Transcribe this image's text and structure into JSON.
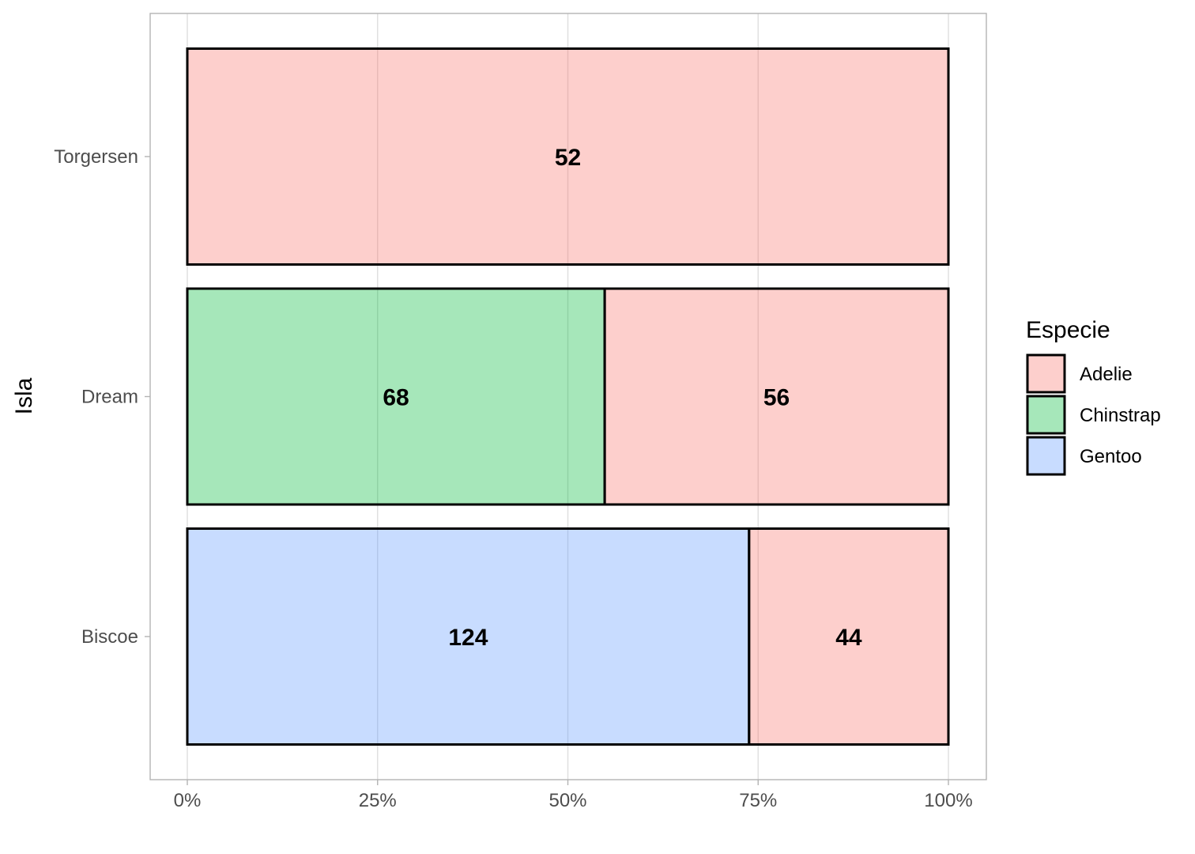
{
  "chart_data": {
    "type": "bar",
    "orientation": "horizontal",
    "stacking": "percent",
    "categories": [
      "Torgersen",
      "Dream",
      "Biscoe"
    ],
    "series": [
      {
        "name": "Gentoo",
        "values": [
          0,
          0,
          124
        ]
      },
      {
        "name": "Chinstrap",
        "values": [
          0,
          68,
          0
        ]
      },
      {
        "name": "Adelie",
        "values": [
          52,
          56,
          44
        ]
      }
    ],
    "title": "",
    "xlabel": "",
    "ylabel": "Isla",
    "x_ticks": [
      "0%",
      "25%",
      "50%",
      "75%",
      "100%"
    ],
    "xlim": [
      0,
      1
    ],
    "grid": true,
    "legend": {
      "title": "Especie",
      "position": "right",
      "entries": [
        "Adelie",
        "Chinstrap",
        "Gentoo"
      ]
    },
    "colors": {
      "Adelie": "#f8766d",
      "Chinstrap": "#00ba38",
      "Gentoo": "#619cff"
    },
    "fill_alpha": 0.35
  }
}
